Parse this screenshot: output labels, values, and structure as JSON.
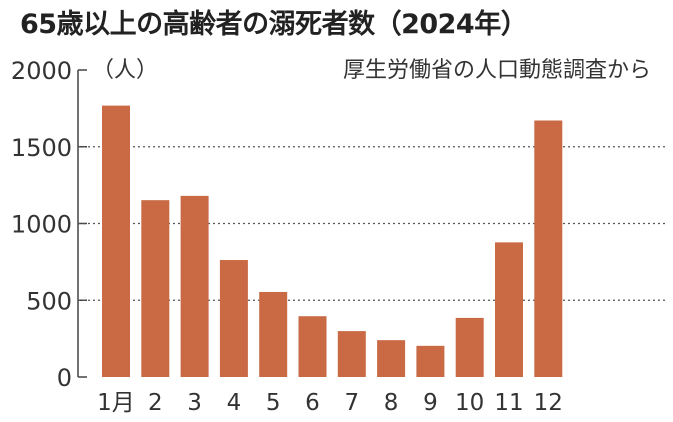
{
  "chart_data": {
    "type": "bar",
    "title": "65歳以上の高齢者の溺死者数（2024年）",
    "subtitle": "厚生労働省の人口動態調査から",
    "ylabel": "（人）",
    "xlabel": "",
    "categories": [
      "1月",
      "2",
      "3",
      "4",
      "5",
      "6",
      "7",
      "8",
      "9",
      "10",
      "11",
      "12"
    ],
    "values": [
      1768,
      1152,
      1180,
      762,
      554,
      396,
      299,
      240,
      203,
      385,
      877,
      1671
    ],
    "ylim": [
      0,
      2000
    ],
    "yticks": [
      "0",
      "500",
      "1000",
      "1500",
      "2000"
    ],
    "grid": true,
    "bar_color": "#c96a45"
  }
}
